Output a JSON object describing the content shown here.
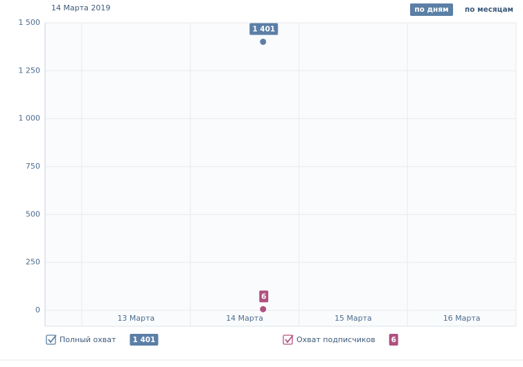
{
  "chart_data": {
    "type": "line",
    "title": "14 Марта 2019",
    "buttons": [
      "по дням",
      "по месяцам"
    ],
    "categories": [
      "13 Марта",
      "14 Марта",
      "15 Марта",
      "16 Марта"
    ],
    "series": [
      {
        "name": "Полный охват",
        "color": "#5b7fa6",
        "values": [
          null,
          1401,
          null,
          null
        ],
        "value_labels": [
          null,
          "1 401",
          null,
          null
        ]
      },
      {
        "name": "Охват подписчиков",
        "color": "#b0507f",
        "values": [
          null,
          6,
          null,
          null
        ],
        "value_labels": [
          null,
          "6",
          null,
          null
        ]
      }
    ],
    "ylim": [
      0,
      1500
    ],
    "yticks": [
      0,
      250,
      500,
      750,
      {
        "value": 1000,
        "label": "1 000"
      },
      {
        "value": 1250,
        "label": "1 250"
      },
      {
        "value": 1500,
        "label": "1 500"
      }
    ],
    "grid": true
  }
}
